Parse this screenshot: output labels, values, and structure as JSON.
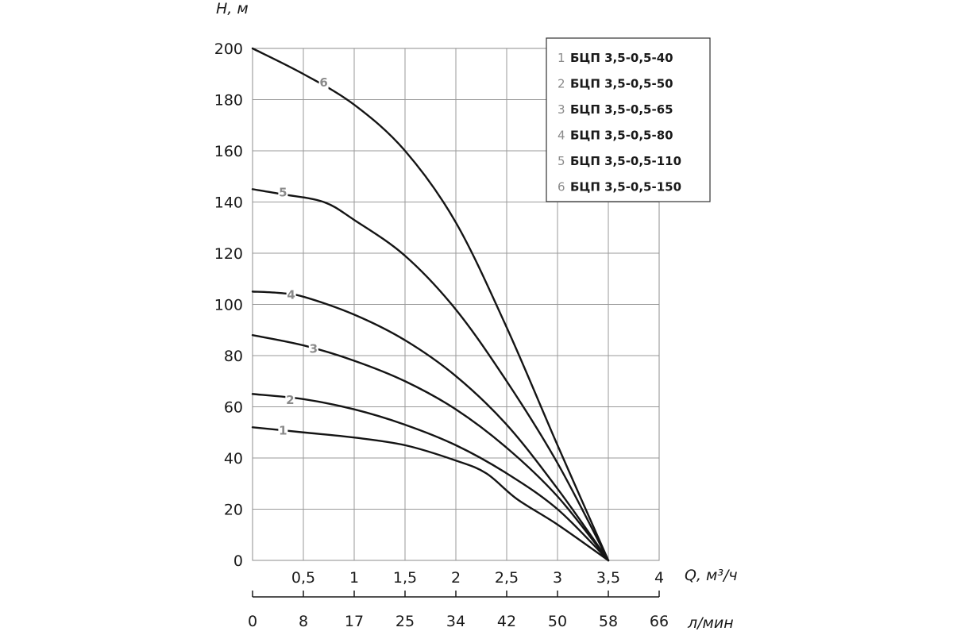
{
  "chart_data": {
    "type": "line",
    "ylabel": "H, м",
    "xlabel": "Q, м³/ч",
    "xlabel_secondary": "л/мин",
    "ylim": [
      0,
      200
    ],
    "xlim": [
      0,
      4
    ],
    "grid": true,
    "legend_position": "top-right",
    "yticks": [
      "0",
      "20",
      "40",
      "60",
      "80",
      "100",
      "120",
      "140",
      "160",
      "180",
      "200"
    ],
    "xticks": [
      "0,5",
      "1",
      "1,5",
      "2",
      "2,5",
      "3",
      "3,5",
      "4"
    ],
    "xticks_secondary": [
      "0",
      "8",
      "17",
      "25",
      "34",
      "42",
      "50",
      "58",
      "66"
    ],
    "series": [
      {
        "name": "БЦП 3,5-0,5-40",
        "num": "1",
        "x": [
          0,
          0.5,
          1,
          1.5,
          2,
          2.3,
          2.6,
          3,
          3.5
        ],
        "y": [
          52,
          50,
          48,
          45,
          39,
          34,
          24,
          14,
          0
        ],
        "label_at": [
          0.3,
          51
        ]
      },
      {
        "name": "БЦП 3,5-0,5-50",
        "num": "2",
        "x": [
          0,
          0.5,
          1,
          1.5,
          2,
          2.5,
          3,
          3.5
        ],
        "y": [
          65,
          63,
          59,
          53,
          45,
          34,
          20,
          0
        ],
        "label_at": [
          0.37,
          63
        ]
      },
      {
        "name": "БЦП 3,5-0,5-65",
        "num": "3",
        "x": [
          0,
          0.5,
          1,
          1.5,
          2,
          2.5,
          3,
          3.5
        ],
        "y": [
          88,
          84,
          78,
          70,
          59,
          44,
          25,
          0
        ],
        "label_at": [
          0.6,
          83
        ]
      },
      {
        "name": "БЦП 3,5-0,5-80",
        "num": "4",
        "x": [
          0,
          0.25,
          0.5,
          1,
          1.5,
          2,
          2.5,
          3,
          3.5
        ],
        "y": [
          105,
          104.5,
          103,
          96,
          86,
          72,
          53,
          28,
          0
        ],
        "label_at": [
          0.38,
          104
        ]
      },
      {
        "name": "БЦП 3,5-0,5-110",
        "num": "5",
        "x": [
          0,
          0.3,
          0.7,
          1,
          1.5,
          2,
          2.5,
          3,
          3.5
        ],
        "y": [
          145,
          143,
          140,
          133,
          119,
          98,
          70,
          38,
          0
        ],
        "label_at": [
          0.3,
          144
        ]
      },
      {
        "name": "БЦП 3,5-0,5-150",
        "num": "6",
        "x": [
          0,
          0.5,
          1,
          1.5,
          2,
          2.5,
          3,
          3.5
        ],
        "y": [
          200,
          190,
          178,
          160,
          132,
          91,
          45,
          0
        ],
        "label_at": [
          0.7,
          187
        ]
      }
    ]
  }
}
